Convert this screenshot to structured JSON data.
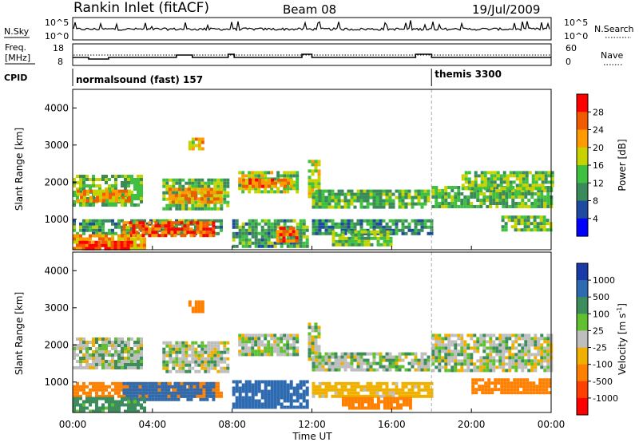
{
  "header": {
    "station": "Rankin Inlet (fitACF)",
    "beam": "Beam 08",
    "date": "19/Jul/2009"
  },
  "strips": {
    "nsky_label": "N.Sky",
    "nsky_ticks": [
      "10^5",
      "10^0"
    ],
    "nsearch_label": "N.Search",
    "nsearch_ticks": [
      "10^5",
      "10^0"
    ],
    "freq_label_top": "Freq.",
    "freq_label_bottom": "[MHz]",
    "freq_ticks": [
      "18",
      "8"
    ],
    "nave_label": "Nave",
    "nave_ticks": [
      "60",
      "0"
    ],
    "cpid_label": "CPID",
    "cpid_modes": [
      {
        "name": "normalsound (fast) 157",
        "start_hour": 0,
        "end_hour": 18
      },
      {
        "name": "themis 3300",
        "start_hour": 18,
        "end_hour": 24
      }
    ]
  },
  "colorbars": {
    "power": {
      "label": "Power [dB]",
      "ticks": [
        "28",
        "24",
        "20",
        "16",
        "12",
        "8",
        "4"
      ],
      "colors": [
        "#ff0000",
        "#f05a00",
        "#ff9a00",
        "#c8d200",
        "#40c040",
        "#3a8a5a",
        "#1e4aa0",
        "#0000ff"
      ]
    },
    "velocity": {
      "label": "Velocity [m s",
      "label_sup": "-1",
      "label_end": "]",
      "ticks": [
        "1000",
        "500",
        "100",
        "25",
        "-25",
        "-100",
        "-500",
        "-1000"
      ],
      "colors": [
        "#1a3aa8",
        "#2e6ab0",
        "#3c8c5c",
        "#60c030",
        "#bebebe",
        "#f0b000",
        "#ff8000",
        "#ff4000",
        "#ff0000"
      ]
    }
  },
  "axes": {
    "ylabel": "Slant Range [km]",
    "xlabel": "Time UT",
    "xticks": [
      "00:00",
      "04:00",
      "08:00",
      "12:00",
      "16:00",
      "20:00",
      "00:00"
    ],
    "yticks": [
      "1000",
      "2000",
      "3000",
      "4000"
    ]
  },
  "chart_data": [
    {
      "type": "heatmap",
      "title": "Power",
      "xlabel": "Time UT",
      "ylabel": "Slant Range [km]",
      "xlim_hours": [
        0,
        24
      ],
      "ylim_km": [
        180,
        4500
      ],
      "colorbar_label": "Power [dB]",
      "colorbar_range_db": [
        0,
        32
      ],
      "regions": [
        {
          "t0": 0.0,
          "t1": 3.5,
          "r0": 1350,
          "r1": 2200,
          "value": 14
        },
        {
          "t0": 0.2,
          "t1": 2.8,
          "r0": 1500,
          "r1": 1800,
          "value": 22
        },
        {
          "t0": 0.0,
          "t1": 7.5,
          "r0": 600,
          "r1": 1000,
          "value": 12
        },
        {
          "t0": 2.5,
          "t1": 7.0,
          "r0": 600,
          "r1": 950,
          "value": 26
        },
        {
          "t0": 0.0,
          "t1": 3.6,
          "r0": 200,
          "r1": 600,
          "value": 22
        },
        {
          "t0": 0.3,
          "t1": 2.9,
          "r0": 200,
          "r1": 420,
          "value": 29
        },
        {
          "t0": 4.5,
          "t1": 7.8,
          "r0": 1250,
          "r1": 2100,
          "value": 14
        },
        {
          "t0": 4.8,
          "t1": 7.5,
          "r0": 1500,
          "r1": 1850,
          "value": 22
        },
        {
          "t0": 5.8,
          "t1": 6.6,
          "r0": 2900,
          "r1": 3200,
          "value": 20
        },
        {
          "t0": 8.3,
          "t1": 11.2,
          "r0": 1700,
          "r1": 2300,
          "value": 16
        },
        {
          "t0": 8.5,
          "t1": 11.0,
          "r0": 1850,
          "r1": 2100,
          "value": 24
        },
        {
          "t0": 8.0,
          "t1": 11.8,
          "r0": 250,
          "r1": 1000,
          "value": 12
        },
        {
          "t0": 10.2,
          "t1": 11.2,
          "r0": 400,
          "r1": 800,
          "value": 25
        },
        {
          "t0": 11.8,
          "t1": 12.3,
          "r0": 1600,
          "r1": 2600,
          "value": 18
        },
        {
          "t0": 12.0,
          "t1": 17.8,
          "r0": 1300,
          "r1": 1800,
          "value": 13
        },
        {
          "t0": 12.0,
          "t1": 18.0,
          "r0": 650,
          "r1": 1000,
          "value": 10
        },
        {
          "t0": 13.0,
          "t1": 16.0,
          "r0": 300,
          "r1": 700,
          "value": 15
        },
        {
          "t0": 18.0,
          "t1": 24.0,
          "r0": 1300,
          "r1": 1900,
          "value": 13
        },
        {
          "t0": 19.5,
          "t1": 24.0,
          "r0": 1800,
          "r1": 2300,
          "value": 15
        },
        {
          "t0": 21.5,
          "t1": 24.0,
          "r0": 700,
          "r1": 1100,
          "value": 14
        }
      ]
    },
    {
      "type": "heatmap",
      "title": "Velocity",
      "xlabel": "Time UT",
      "ylabel": "Slant Range [km]",
      "xlim_hours": [
        0,
        24
      ],
      "ylim_km": [
        180,
        4500
      ],
      "colorbar_label": "Velocity [m s-1]",
      "colorbar_range_ms": [
        -1000,
        1000
      ],
      "regions": [
        {
          "t0": 0.0,
          "t1": 3.5,
          "r0": 1350,
          "r1": 2200,
          "value": 5
        },
        {
          "t0": 0.0,
          "t1": 7.5,
          "r0": 600,
          "r1": 1000,
          "value": -150
        },
        {
          "t0": 2.5,
          "t1": 7.0,
          "r0": 500,
          "r1": 1000,
          "value": 150
        },
        {
          "t0": 0.0,
          "t1": 3.6,
          "r0": 200,
          "r1": 600,
          "value": 60
        },
        {
          "t0": 4.5,
          "t1": 7.8,
          "r0": 1250,
          "r1": 2100,
          "value": 0
        },
        {
          "t0": 5.8,
          "t1": 6.6,
          "r0": 2900,
          "r1": 3200,
          "value": -200
        },
        {
          "t0": 8.3,
          "t1": 11.2,
          "r0": 1700,
          "r1": 2300,
          "value": 0
        },
        {
          "t0": 8.0,
          "t1": 11.8,
          "r0": 300,
          "r1": 1050,
          "value": 200
        },
        {
          "t0": 11.8,
          "t1": 12.3,
          "r0": 1600,
          "r1": 2600,
          "value": 0
        },
        {
          "t0": 12.0,
          "t1": 17.8,
          "r0": 1300,
          "r1": 1800,
          "value": 5
        },
        {
          "t0": 12.0,
          "t1": 18.0,
          "r0": 650,
          "r1": 1000,
          "value": -60
        },
        {
          "t0": 13.5,
          "t1": 17.0,
          "r0": 300,
          "r1": 600,
          "value": -300
        },
        {
          "t0": 18.0,
          "t1": 24.0,
          "r0": 1300,
          "r1": 2300,
          "value": 0
        },
        {
          "t0": 20.0,
          "t1": 24.0,
          "r0": 700,
          "r1": 1100,
          "value": -150
        }
      ]
    }
  ]
}
